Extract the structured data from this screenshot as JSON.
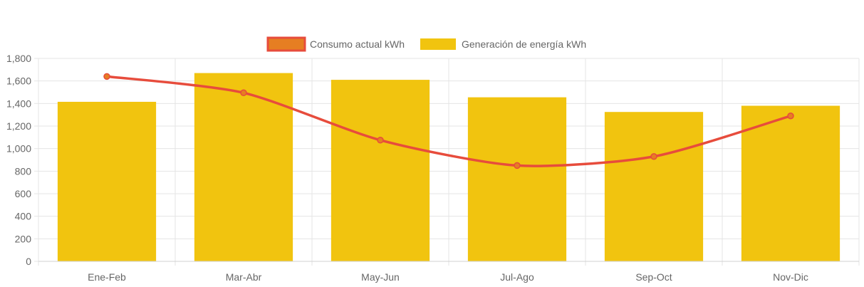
{
  "chart_data": {
    "type": "bar",
    "title": "",
    "xlabel": "",
    "ylabel": "",
    "categories": [
      "Ene-Feb",
      "Mar-Abr",
      "May-Jun",
      "Jul-Ago",
      "Sep-Oct",
      "Nov-Dic"
    ],
    "ylim": [
      0,
      1800
    ],
    "yticks": [
      0,
      200,
      400,
      600,
      800,
      1000,
      1200,
      1400,
      1600,
      1800
    ],
    "ytick_labels": [
      "0",
      "200",
      "400",
      "600",
      "800",
      "1,000",
      "1,200",
      "1,400",
      "1,600",
      "1,800"
    ],
    "grid": true,
    "legend_position": "top-center",
    "series": [
      {
        "name": "Consumo actual kWh",
        "type": "line",
        "values": [
          1640,
          1495,
          1075,
          850,
          930,
          1290
        ],
        "color": "#E74C3C",
        "fill": "#E67E22"
      },
      {
        "name": "Generación de energía kWh",
        "type": "bar",
        "values": [
          1415,
          1670,
          1610,
          1455,
          1325,
          1380
        ],
        "color": "#F1C40F"
      }
    ]
  }
}
